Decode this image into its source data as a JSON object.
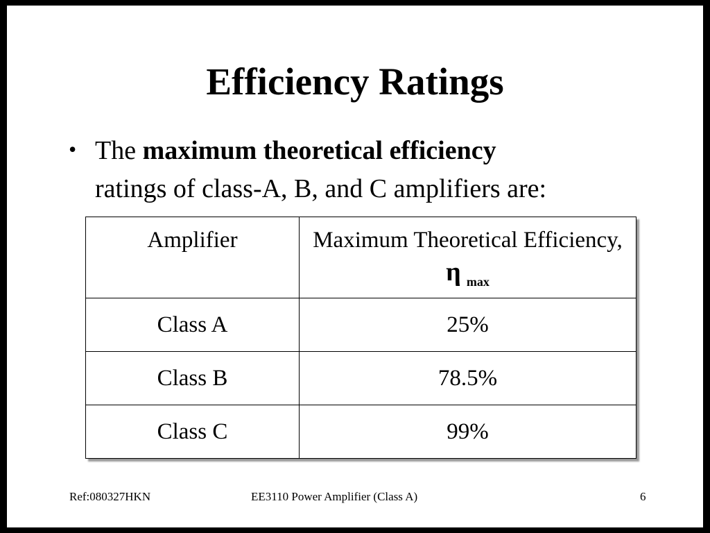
{
  "title": "Efficiency Ratings",
  "bullet": {
    "lead": "The",
    "bold": "maximum theoretical efficiency",
    "rest": "ratings of class-A, B, and C amplifiers are:"
  },
  "table": {
    "header": [
      "Amplifier",
      {
        "text": "Maximum Theoretical Efficiency,",
        "symbol": "η",
        "subscript": "max"
      }
    ],
    "rows": [
      [
        "Class A",
        "25%"
      ],
      [
        "Class B",
        "78.5%"
      ],
      [
        "Class C",
        "99%"
      ]
    ]
  },
  "footer": {
    "left": "Ref:080327HKN",
    "center": "EE3110 Power Amplifier (Class A)",
    "right": "6"
  }
}
